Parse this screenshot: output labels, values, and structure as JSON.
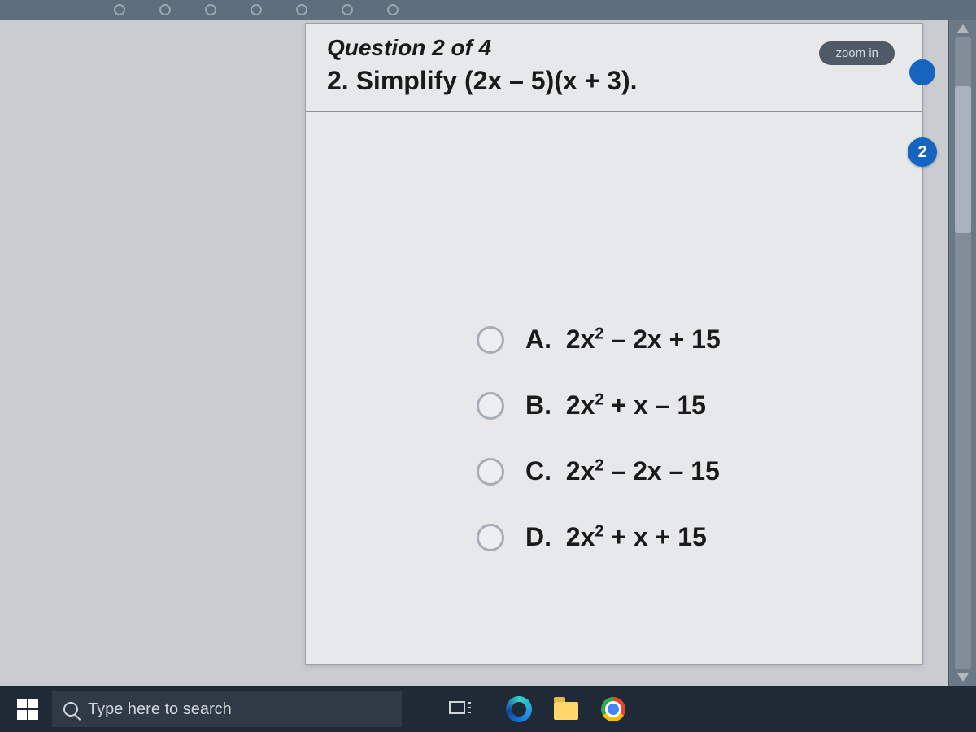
{
  "progress": {
    "dot_count": 7
  },
  "question": {
    "counter": "Question 2 of 4",
    "prompt_html": "2. Simplify (2x – 5)(x + 3).",
    "zoom_label": "zoom in",
    "badge_value": "2",
    "options": [
      {
        "letter": "A.",
        "expr_html": "2x<sup>2</sup> – 2x + 15"
      },
      {
        "letter": "B.",
        "expr_html": "2x<sup>2</sup> + x – 15"
      },
      {
        "letter": "C.",
        "expr_html": "2x<sup>2</sup> – 2x – 15"
      },
      {
        "letter": "D.",
        "expr_html": "2x<sup>2</sup> + x + 15"
      }
    ]
  },
  "taskbar": {
    "search_placeholder": "Type here to search"
  },
  "colors": {
    "desktop_bg": "#c9ccd1",
    "card_bg": "#e7e8ea",
    "taskbar_bg": "#1f2a36",
    "accent_blue": "#1565c0"
  }
}
